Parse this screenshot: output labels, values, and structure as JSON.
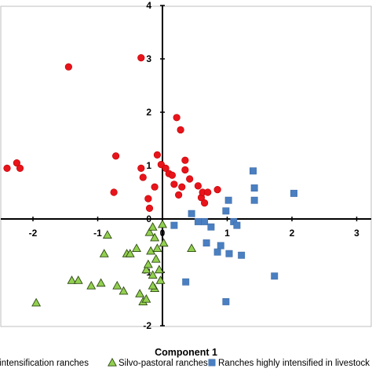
{
  "chart_data": {
    "type": "scatter",
    "title": "",
    "xlabel": "Component 1",
    "ylabel": "",
    "xlim": [
      -2.5,
      3
    ],
    "ylim": [
      -2,
      4
    ],
    "x_ticks": [
      -2,
      -1,
      0,
      1,
      2,
      3
    ],
    "y_ticks": [
      -2,
      -1,
      0,
      1,
      2,
      3,
      4
    ],
    "x_tick_labels": [
      "-2",
      "-1",
      "0",
      "1",
      "2",
      "3"
    ],
    "y_tick_labels": [
      "-2",
      "-1",
      "0",
      "1",
      "2",
      "3",
      "4"
    ],
    "grid": false,
    "legend_position": "bottom",
    "series": [
      {
        "name": "Medium intensification ranches",
        "legend_label": "um intensification ranches",
        "marker": "circle",
        "color": "#e8141b",
        "points": [
          [
            -2.4,
            0.95
          ],
          [
            -2.25,
            1.05
          ],
          [
            -2.2,
            0.95
          ],
          [
            -1.45,
            2.85
          ],
          [
            -0.33,
            3.02
          ],
          [
            -0.72,
            1.18
          ],
          [
            -0.75,
            0.5
          ],
          [
            -0.33,
            0.95
          ],
          [
            -0.3,
            0.78
          ],
          [
            -0.22,
            0.38
          ],
          [
            -0.2,
            0.2
          ],
          [
            -0.12,
            0.6
          ],
          [
            -0.08,
            1.2
          ],
          [
            0.22,
            1.9
          ],
          [
            0.28,
            1.67
          ],
          [
            -0.02,
            1.02
          ],
          [
            0.05,
            0.95
          ],
          [
            0.1,
            0.85
          ],
          [
            0.15,
            0.82
          ],
          [
            0.18,
            0.65
          ],
          [
            0.25,
            0.45
          ],
          [
            0.3,
            0.6
          ],
          [
            0.35,
            0.92
          ],
          [
            0.35,
            1.1
          ],
          [
            0.42,
            0.75
          ],
          [
            0.55,
            0.62
          ],
          [
            0.6,
            0.4
          ],
          [
            0.62,
            0.5
          ],
          [
            0.65,
            0.3
          ],
          [
            0.7,
            0.5
          ],
          [
            0.85,
            0.55
          ]
        ]
      },
      {
        "name": "Silvo-pastoral ranches",
        "legend_label": "Silvo-pastoral ranches",
        "marker": "triangle",
        "color": "#92d050",
        "points": [
          [
            -1.95,
            -1.57
          ],
          [
            -1.4,
            -1.15
          ],
          [
            -1.3,
            -1.15
          ],
          [
            -1.1,
            -1.25
          ],
          [
            -0.95,
            -1.2
          ],
          [
            -0.85,
            -0.3
          ],
          [
            -0.9,
            -0.65
          ],
          [
            -0.7,
            -1.25
          ],
          [
            -0.6,
            -1.35
          ],
          [
            -0.55,
            -0.65
          ],
          [
            -0.5,
            -0.65
          ],
          [
            -0.4,
            -0.55
          ],
          [
            -0.35,
            -1.4
          ],
          [
            -0.3,
            -1.55
          ],
          [
            -0.25,
            -0.95
          ],
          [
            -0.22,
            -0.85
          ],
          [
            -0.2,
            -0.25
          ],
          [
            -0.18,
            -0.6
          ],
          [
            -0.15,
            -0.15
          ],
          [
            -0.12,
            -0.35
          ],
          [
            -0.1,
            -0.75
          ],
          [
            -0.08,
            -0.55
          ],
          [
            -0.05,
            -0.95
          ],
          [
            -0.03,
            -1.15
          ],
          [
            0.0,
            -0.1
          ],
          [
            -0.15,
            -1.05
          ],
          [
            -0.12,
            -1.3
          ],
          [
            -0.25,
            -1.5
          ],
          [
            -0.15,
            -1.25
          ],
          [
            0.45,
            -0.55
          ],
          [
            0.02,
            -0.45
          ]
        ]
      },
      {
        "name": "Ranches highly intensified in livestock a",
        "legend_label": "Ranches highly intensified in livestock a",
        "marker": "square",
        "color": "#4a7fc1",
        "points": [
          [
            0.18,
            -0.12
          ],
          [
            0.45,
            0.1
          ],
          [
            0.55,
            -0.05
          ],
          [
            0.65,
            -0.05
          ],
          [
            0.75,
            -0.15
          ],
          [
            0.9,
            -0.5
          ],
          [
            0.98,
            0.15
          ],
          [
            1.02,
            0.35
          ],
          [
            1.1,
            -0.05
          ],
          [
            1.15,
            -0.12
          ],
          [
            1.42,
            0.35
          ],
          [
            1.42,
            0.58
          ],
          [
            1.4,
            0.9
          ],
          [
            2.03,
            0.48
          ],
          [
            0.68,
            -0.45
          ],
          [
            0.85,
            -0.62
          ],
          [
            1.03,
            -0.65
          ],
          [
            1.22,
            -0.68
          ],
          [
            1.73,
            -1.07
          ],
          [
            0.98,
            -1.55
          ],
          [
            0.36,
            -1.18
          ]
        ]
      }
    ]
  }
}
